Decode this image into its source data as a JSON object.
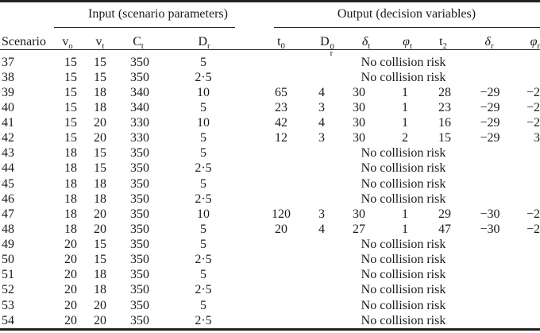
{
  "table": {
    "input_group_label": "Input (scenario parameters)",
    "output_group_label": "Output (decision variables)",
    "scenario_header": "Scenario",
    "input_columns": [
      {
        "base": "v",
        "sub": "o"
      },
      {
        "base": "v",
        "sub": "t"
      },
      {
        "base": "C",
        "sub": "t"
      },
      {
        "base": "D",
        "sub": "r"
      }
    ],
    "output_columns": [
      {
        "base": "t",
        "sub": "0"
      },
      {
        "base": "D",
        "sub": "r",
        "sup": "0"
      },
      {
        "base": "δ",
        "italic": true,
        "sub": "t"
      },
      {
        "base": "φ",
        "italic": true,
        "sub": "t"
      },
      {
        "base": "t",
        "sub": "2"
      },
      {
        "base": "δ",
        "italic": true,
        "sub": "r"
      },
      {
        "base": "φ",
        "italic": true,
        "sub": "r"
      }
    ],
    "no_collision_text": "No collision risk",
    "rows": [
      {
        "scenario": "37",
        "input": [
          "15",
          "15",
          "350",
          "5"
        ],
        "output": null
      },
      {
        "scenario": "38",
        "input": [
          "15",
          "15",
          "350",
          "2·5"
        ],
        "output": null
      },
      {
        "scenario": "39",
        "input": [
          "15",
          "18",
          "340",
          "10"
        ],
        "output": [
          "65",
          "4",
          "30",
          "1",
          "28",
          "−29",
          "−2"
        ]
      },
      {
        "scenario": "40",
        "input": [
          "15",
          "18",
          "340",
          "5"
        ],
        "output": [
          "23",
          "3",
          "30",
          "1",
          "23",
          "−29",
          "−2"
        ]
      },
      {
        "scenario": "41",
        "input": [
          "15",
          "20",
          "330",
          "10"
        ],
        "output": [
          "42",
          "4",
          "30",
          "1",
          "16",
          "−29",
          "−2"
        ]
      },
      {
        "scenario": "42",
        "input": [
          "15",
          "20",
          "330",
          "5"
        ],
        "output": [
          "12",
          "3",
          "30",
          "2",
          "15",
          "−29",
          "3"
        ]
      },
      {
        "scenario": "43",
        "input": [
          "18",
          "15",
          "350",
          "5"
        ],
        "output": null
      },
      {
        "scenario": "44",
        "input": [
          "18",
          "15",
          "350",
          "2·5"
        ],
        "output": null
      },
      {
        "scenario": "45",
        "input": [
          "18",
          "18",
          "350",
          "5"
        ],
        "output": null
      },
      {
        "scenario": "46",
        "input": [
          "18",
          "18",
          "350",
          "2·5"
        ],
        "output": null
      },
      {
        "scenario": "47",
        "input": [
          "18",
          "20",
          "350",
          "10"
        ],
        "output": [
          "120",
          "3",
          "30",
          "1",
          "29",
          "−30",
          "−2"
        ]
      },
      {
        "scenario": "48",
        "input": [
          "18",
          "20",
          "350",
          "5"
        ],
        "output": [
          "20",
          "4",
          "27",
          "1",
          "47",
          "−30",
          "−2"
        ]
      },
      {
        "scenario": "49",
        "input": [
          "20",
          "15",
          "350",
          "5"
        ],
        "output": null
      },
      {
        "scenario": "50",
        "input": [
          "20",
          "15",
          "350",
          "2·5"
        ],
        "output": null
      },
      {
        "scenario": "51",
        "input": [
          "20",
          "18",
          "350",
          "5"
        ],
        "output": null
      },
      {
        "scenario": "52",
        "input": [
          "20",
          "18",
          "350",
          "2·5"
        ],
        "output": null
      },
      {
        "scenario": "53",
        "input": [
          "20",
          "20",
          "350",
          "5"
        ],
        "output": null
      },
      {
        "scenario": "54",
        "input": [
          "20",
          "20",
          "350",
          "2·5"
        ],
        "output": null
      }
    ]
  }
}
